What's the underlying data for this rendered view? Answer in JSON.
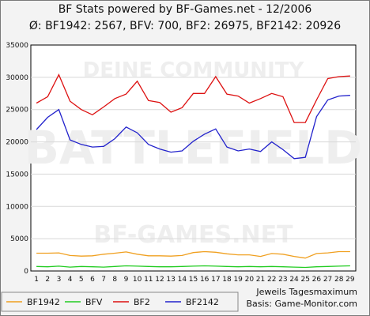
{
  "chart_data": {
    "type": "line",
    "title": "BF Stats powered by BF-Games.net - 12/2006",
    "subtitle": "Ø: BF1942: 2567, BFV: 700, BF2: 26975, BF2142: 20926",
    "x": [
      1,
      2,
      3,
      4,
      5,
      6,
      7,
      8,
      9,
      10,
      11,
      12,
      13,
      14,
      15,
      16,
      17,
      18,
      19,
      20,
      21,
      22,
      23,
      24,
      25,
      26,
      27,
      28,
      29
    ],
    "ylim": [
      0,
      35000
    ],
    "yticks": [
      0,
      5000,
      10000,
      15000,
      20000,
      25000,
      30000,
      35000
    ],
    "grid": true,
    "legend": "bottom",
    "series": [
      {
        "name": "BF1942",
        "color": "#f0a020",
        "values": [
          2750,
          2750,
          2800,
          2400,
          2300,
          2350,
          2600,
          2750,
          2950,
          2600,
          2350,
          2350,
          2300,
          2400,
          2850,
          3000,
          2900,
          2650,
          2500,
          2500,
          2250,
          2700,
          2600,
          2250,
          2000,
          2700,
          2800,
          3000,
          3000
        ]
      },
      {
        "name": "BFV",
        "color": "#22cc22",
        "values": [
          700,
          650,
          750,
          600,
          700,
          650,
          600,
          700,
          800,
          750,
          700,
          650,
          650,
          700,
          750,
          800,
          750,
          700,
          650,
          700,
          650,
          700,
          650,
          600,
          550,
          650,
          700,
          750,
          800
        ]
      },
      {
        "name": "BF2",
        "color": "#dd1111",
        "values": [
          26000,
          27000,
          30400,
          26300,
          25000,
          24200,
          25400,
          26700,
          27400,
          29400,
          26400,
          26100,
          24600,
          25300,
          27500,
          27500,
          30100,
          27400,
          27100,
          26000,
          26700,
          27500,
          27000,
          23000,
          23000,
          26500,
          29800,
          30100,
          30200
        ]
      },
      {
        "name": "BF2142",
        "color": "#2222cc",
        "values": [
          21900,
          23800,
          25000,
          20300,
          19600,
          19200,
          19300,
          20500,
          22300,
          21400,
          19600,
          18900,
          18400,
          18600,
          20100,
          21200,
          22000,
          19200,
          18600,
          18900,
          18500,
          20000,
          18800,
          17400,
          17600,
          23900,
          26500,
          27100,
          27200
        ]
      }
    ],
    "note_line1": "Jeweils Tagesmaximum",
    "note_line2": "Basis: Game-Monitor.com",
    "watermark": "DEINE COMMUNITY · BATTLEFIELD · BF-GAMES.NET"
  }
}
